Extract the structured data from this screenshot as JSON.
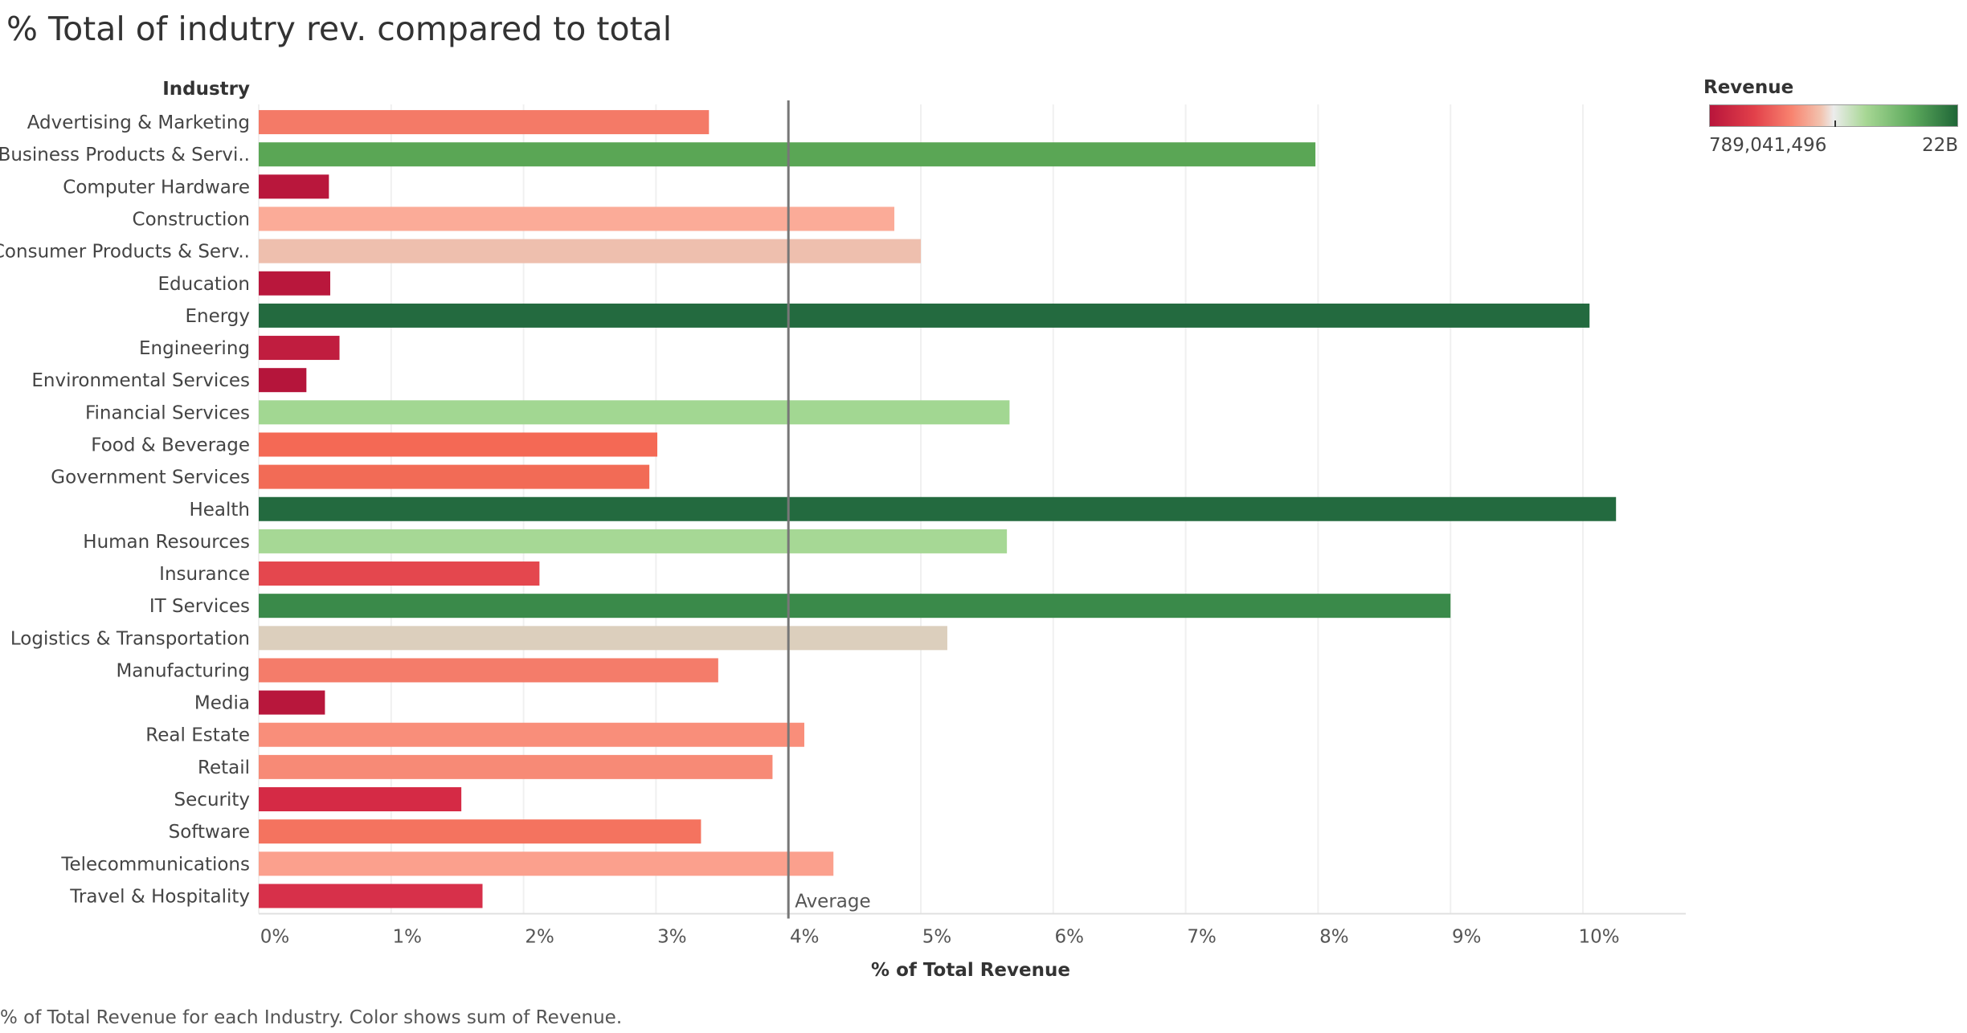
{
  "chart_data": {
    "type": "bar",
    "orientation": "horizontal",
    "title": "% Total of indutry rev. compared to total",
    "row_header": "Industry",
    "xlabel": "% of Total Revenue",
    "xlim": [
      0,
      10.6
    ],
    "xticks": [
      0,
      1,
      2,
      3,
      4,
      5,
      6,
      7,
      8,
      9,
      10
    ],
    "xtick_labels": [
      "0%",
      "1%",
      "2%",
      "3%",
      "4%",
      "5%",
      "6%",
      "7%",
      "8%",
      "9%",
      "10%"
    ],
    "grid": true,
    "categories": [
      "Advertising & Marketing",
      "Business Products & Servi..",
      "Computer Hardware",
      "Construction",
      "Consumer Products & Serv..",
      "Education",
      "Energy",
      "Engineering",
      "Environmental Services",
      "Financial Services",
      "Food & Beverage",
      "Government Services",
      "Health",
      "Human Resources",
      "Insurance",
      "IT Services",
      "Logistics & Transportation",
      "Manufacturing",
      "Media",
      "Real Estate",
      "Retail",
      "Security",
      "Software",
      "Telecommunications",
      "Travel & Hospitality"
    ],
    "values": [
      3.4,
      7.98,
      0.53,
      4.8,
      5.0,
      0.54,
      10.05,
      0.61,
      0.36,
      5.67,
      3.01,
      2.95,
      10.25,
      5.65,
      2.12,
      9.0,
      5.2,
      3.47,
      0.5,
      4.12,
      3.88,
      1.53,
      3.34,
      4.34,
      1.69
    ],
    "bar_colors": [
      "#f47a67",
      "#5aa655",
      "#b9173c",
      "#fbab98",
      "#eebfae",
      "#b9173c",
      "#236a3f",
      "#c01d3f",
      "#b5153b",
      "#a2d792",
      "#f46955",
      "#f26b56",
      "#236a3f",
      "#a6d895",
      "#e4474e",
      "#3a8a4a",
      "#dccfbd",
      "#f47c6a",
      "#b8173c",
      "#f98e7a",
      "#f78a76",
      "#d52a45",
      "#f4735f",
      "#fba08d",
      "#d7304a"
    ],
    "reference_line": {
      "label": "Average",
      "value": 4.0
    },
    "color_legend": {
      "title": "Revenue",
      "min_label": "789,041,496",
      "max_label": "22B",
      "colors": [
        "#b8153b",
        "#f8836f",
        "#ececec",
        "#a7d794",
        "#1f6637"
      ]
    },
    "caption": "% of Total Revenue for each Industry.  Color shows sum of Revenue."
  }
}
